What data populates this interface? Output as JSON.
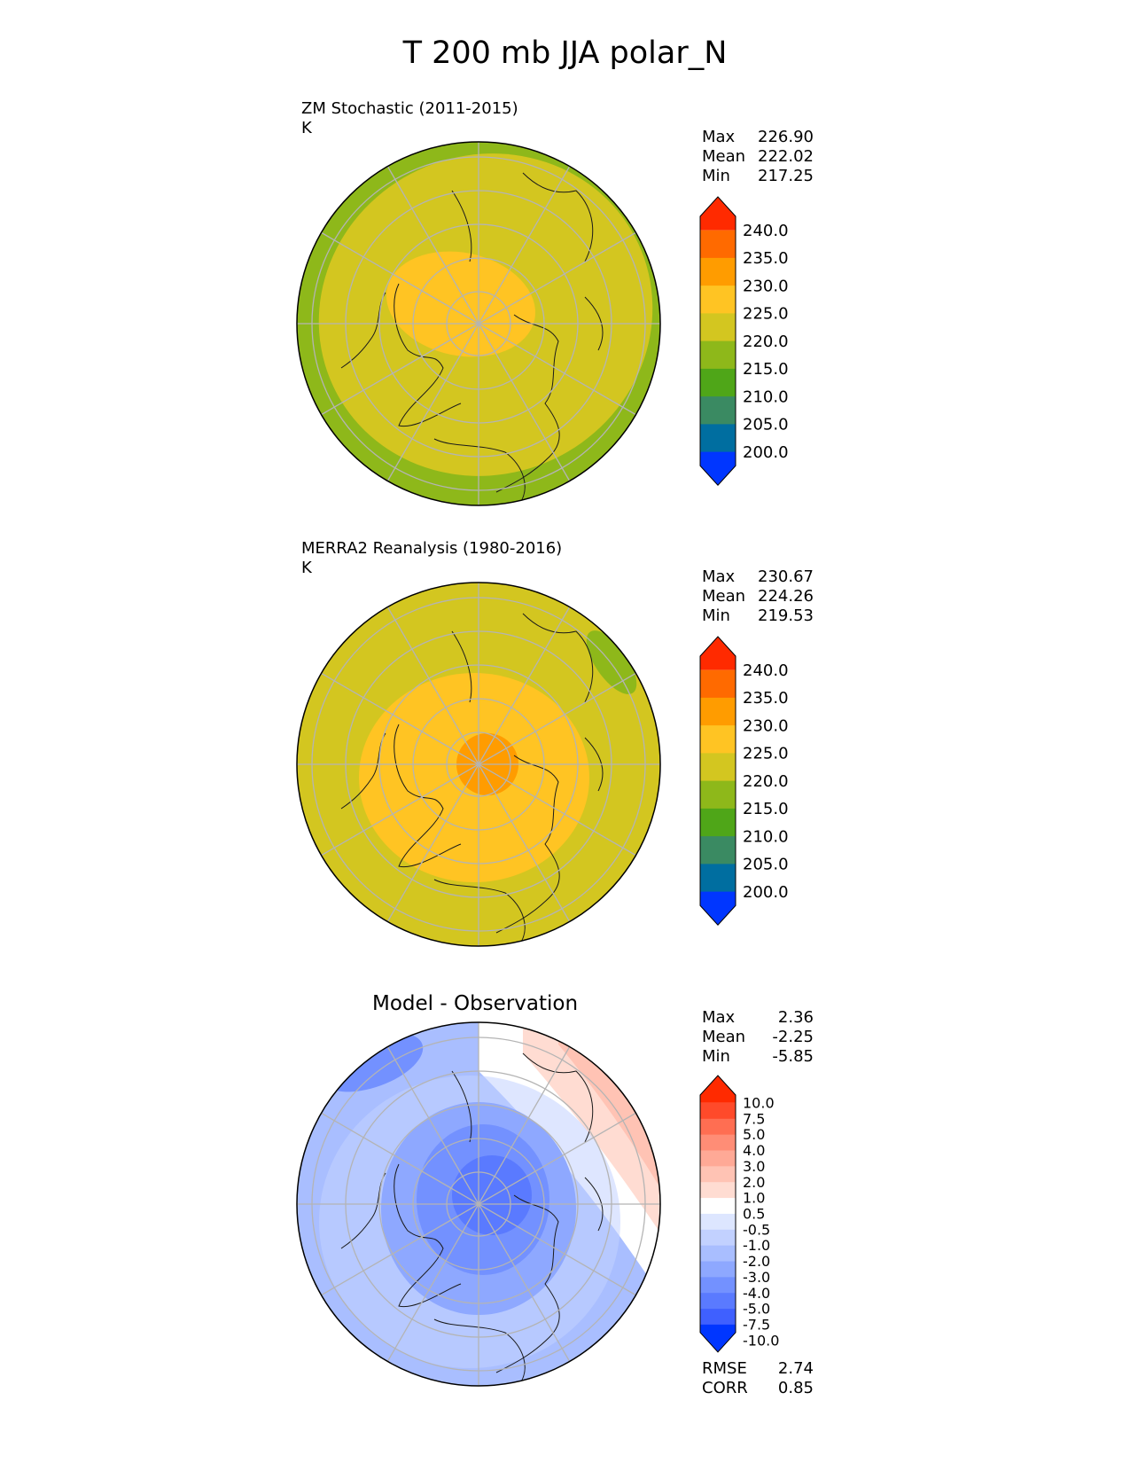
{
  "figure_title": "T 200 mb JJA polar_N",
  "panels": [
    {
      "title": "ZM Stochastic (2011-2015)",
      "units": "K",
      "stats": [
        {
          "label": "Max",
          "value": "226.90"
        },
        {
          "label": "Mean",
          "value": "222.02"
        },
        {
          "label": "Min",
          "value": "217.25"
        }
      ],
      "colorbar": {
        "labels": [
          "240.0",
          "235.0",
          "230.0",
          "225.0",
          "220.0",
          "215.0",
          "210.0",
          "205.0",
          "200.0"
        ],
        "colors": [
          "#ff2a00",
          "#ff6a00",
          "#ff9c00",
          "#ffc423",
          "#d3c620",
          "#8eb81a",
          "#4fa618",
          "#3a8a62",
          "#006ea0",
          "#0036ff"
        ]
      }
    },
    {
      "title": "MERRA2 Reanalysis (1980-2016)",
      "units": "K",
      "stats": [
        {
          "label": "Max",
          "value": "230.67"
        },
        {
          "label": "Mean",
          "value": "224.26"
        },
        {
          "label": "Min",
          "value": "219.53"
        }
      ],
      "colorbar": {
        "labels": [
          "240.0",
          "235.0",
          "230.0",
          "225.0",
          "220.0",
          "215.0",
          "210.0",
          "205.0",
          "200.0"
        ],
        "colors": [
          "#ff2a00",
          "#ff6a00",
          "#ff9c00",
          "#ffc423",
          "#d3c620",
          "#8eb81a",
          "#4fa618",
          "#3a8a62",
          "#006ea0",
          "#0036ff"
        ]
      }
    },
    {
      "title": "Model - Observation",
      "stats": [
        {
          "label": "Max",
          "value": "2.36"
        },
        {
          "label": "Mean",
          "value": "-2.25"
        },
        {
          "label": "Min",
          "value": "-5.85"
        }
      ],
      "extra_stats": [
        {
          "label": "RMSE",
          "value": "2.74"
        },
        {
          "label": "CORR",
          "value": "0.85"
        }
      ],
      "colorbar": {
        "labels": [
          "10.0",
          "7.5",
          "5.0",
          "4.0",
          "3.0",
          "2.0",
          "1.0",
          "0.5",
          "-0.5",
          "-1.0",
          "-2.0",
          "-3.0",
          "-4.0",
          "-5.0",
          "-7.5",
          "-10.0"
        ],
        "colors": [
          "#ff2a00",
          "#ff4a2a",
          "#ff6e52",
          "#ff8d76",
          "#ffa996",
          "#ffc3b4",
          "#ffdcd2",
          "#ffffff",
          "#dde6ff",
          "#c2d1ff",
          "#a9beff",
          "#8ea8ff",
          "#7391ff",
          "#5a7aff",
          "#3f60ff",
          "#0036ff"
        ]
      }
    }
  ],
  "chart_data": [
    {
      "type": "heatmap",
      "projection": "polar stereographic (north)",
      "title": "ZM Stochastic (2011-2015)",
      "units": "K",
      "max": 226.9,
      "mean": 222.02,
      "min": 217.25,
      "levels": [
        200.0,
        205.0,
        210.0,
        215.0,
        220.0,
        225.0,
        230.0,
        235.0,
        240.0
      ],
      "regions": [
        {
          "name": "pole",
          "value_range": [
            225.0,
            230.0
          ]
        },
        {
          "name": "mid-latitudes",
          "value_range": [
            220.0,
            225.0
          ]
        },
        {
          "name": "outer rim",
          "value_range": [
            215.0,
            220.0
          ]
        }
      ]
    },
    {
      "type": "heatmap",
      "projection": "polar stereographic (north)",
      "title": "MERRA2 Reanalysis (1980-2016)",
      "units": "K",
      "max": 230.67,
      "mean": 224.26,
      "min": 219.53,
      "levels": [
        200.0,
        205.0,
        210.0,
        215.0,
        220.0,
        225.0,
        230.0,
        235.0,
        240.0
      ],
      "regions": [
        {
          "name": "pole core",
          "value_range": [
            230.0,
            235.0
          ]
        },
        {
          "name": "high latitudes",
          "value_range": [
            225.0,
            230.0
          ]
        },
        {
          "name": "mid-latitudes",
          "value_range": [
            220.0,
            225.0
          ]
        },
        {
          "name": "NE Pacific patch",
          "value_range": [
            215.0,
            220.0
          ]
        }
      ]
    },
    {
      "type": "heatmap",
      "projection": "polar stereographic (north)",
      "title": "Model - Observation",
      "max": 2.36,
      "mean": -2.25,
      "min": -5.85,
      "rmse": 2.74,
      "corr": 0.85,
      "levels": [
        -10.0,
        -7.5,
        -5.0,
        -4.0,
        -3.0,
        -2.0,
        -1.0,
        -0.5,
        0.5,
        1.0,
        2.0,
        3.0,
        4.0,
        5.0,
        7.5,
        10.0
      ],
      "regions": [
        {
          "name": "pole",
          "value_range": [
            -5.0,
            -4.0
          ]
        },
        {
          "name": "high latitudes",
          "value_range": [
            -4.0,
            -2.0
          ]
        },
        {
          "name": "mid-latitudes",
          "value_range": [
            -3.0,
            -1.0
          ]
        },
        {
          "name": "NE sector",
          "value_range": [
            0.5,
            2.0
          ]
        }
      ]
    }
  ]
}
